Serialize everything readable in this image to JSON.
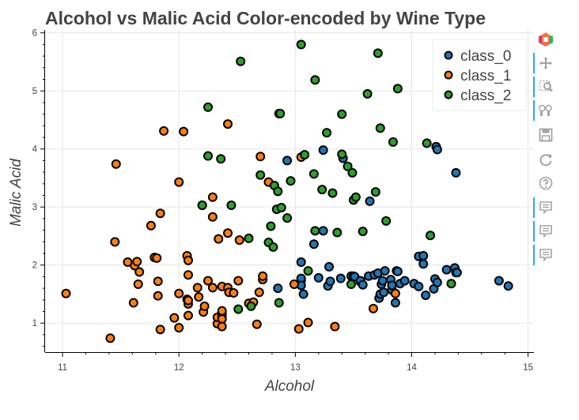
{
  "chart_data": {
    "type": "scatter",
    "title": "Alcohol vs Malic Acid Color-encoded by Wine Type",
    "xlabel": "Alcohol",
    "ylabel": "Malic Acid",
    "xlim": [
      10.85,
      15.05
    ],
    "ylim": [
      0.5,
      6.05
    ],
    "xticks": [
      11,
      12,
      13,
      14,
      15
    ],
    "yticks": [
      1,
      2,
      3,
      4,
      5,
      6
    ],
    "grid": true,
    "legend_position": "top-right",
    "series": [
      {
        "name": "class_0",
        "color": "#1f77b4",
        "points": [
          [
            12.85,
            1.6
          ],
          [
            12.93,
            3.8
          ],
          [
            13.05,
            1.73
          ],
          [
            13.05,
            1.77
          ],
          [
            13.05,
            1.65
          ],
          [
            13.05,
            2.05
          ],
          [
            13.07,
            1.5
          ],
          [
            13.16,
            2.36
          ],
          [
            13.2,
            1.78
          ],
          [
            13.24,
            2.59
          ],
          [
            13.24,
            3.98
          ],
          [
            13.28,
            1.64
          ],
          [
            13.29,
            1.97
          ],
          [
            13.3,
            1.72
          ],
          [
            13.39,
            1.77
          ],
          [
            13.41,
            3.84
          ],
          [
            13.48,
            1.81
          ],
          [
            13.5,
            1.81
          ],
          [
            13.51,
            1.8
          ],
          [
            13.56,
            1.71
          ],
          [
            13.56,
            1.73
          ],
          [
            13.58,
            1.66
          ],
          [
            13.63,
            1.81
          ],
          [
            13.64,
            3.1
          ],
          [
            13.68,
            1.83
          ],
          [
            13.71,
            1.86
          ],
          [
            13.72,
            1.43
          ],
          [
            13.73,
            1.5
          ],
          [
            13.74,
            1.67
          ],
          [
            13.75,
            1.73
          ],
          [
            13.76,
            1.53
          ],
          [
            13.77,
            1.9
          ],
          [
            13.82,
            1.75
          ],
          [
            13.83,
            1.57
          ],
          [
            13.83,
            1.65
          ],
          [
            13.86,
            1.35
          ],
          [
            13.87,
            1.9
          ],
          [
            13.88,
            1.89
          ],
          [
            13.9,
            1.68
          ],
          [
            13.94,
            1.73
          ],
          [
            14.02,
            1.68
          ],
          [
            14.06,
            1.63
          ],
          [
            14.06,
            2.15
          ],
          [
            14.1,
            2.02
          ],
          [
            14.1,
            2.16
          ],
          [
            14.12,
            1.48
          ],
          [
            14.19,
            1.59
          ],
          [
            14.2,
            1.76
          ],
          [
            14.21,
            4.04
          ],
          [
            14.22,
            1.7
          ],
          [
            14.22,
            3.99
          ],
          [
            14.3,
            1.92
          ],
          [
            14.37,
            1.95
          ],
          [
            14.38,
            1.87
          ],
          [
            14.38,
            3.59
          ],
          [
            14.39,
            1.87
          ],
          [
            14.75,
            1.73
          ],
          [
            14.83,
            1.64
          ]
        ]
      },
      {
        "name": "class_1",
        "color": "#ff7f0e",
        "points": [
          [
            11.03,
            1.51
          ],
          [
            11.41,
            0.74
          ],
          [
            11.45,
            2.4
          ],
          [
            11.46,
            3.74
          ],
          [
            11.56,
            2.05
          ],
          [
            11.61,
            1.35
          ],
          [
            11.62,
            1.99
          ],
          [
            11.64,
            2.06
          ],
          [
            11.65,
            1.67
          ],
          [
            11.66,
            1.88
          ],
          [
            11.76,
            2.68
          ],
          [
            11.79,
            2.13
          ],
          [
            11.81,
            2.12
          ],
          [
            11.82,
            1.72
          ],
          [
            11.82,
            1.47
          ],
          [
            11.84,
            2.89
          ],
          [
            11.84,
            0.89
          ],
          [
            11.87,
            4.31
          ],
          [
            11.96,
            1.09
          ],
          [
            12.0,
            0.92
          ],
          [
            12.0,
            3.43
          ],
          [
            12.0,
            1.51
          ],
          [
            12.04,
            4.3
          ],
          [
            12.07,
            2.16
          ],
          [
            12.07,
            1.41
          ],
          [
            12.08,
            1.33
          ],
          [
            12.08,
            1.13
          ],
          [
            12.08,
            1.39
          ],
          [
            12.08,
            2.08
          ],
          [
            12.08,
            1.83
          ],
          [
            12.16,
            1.61
          ],
          [
            12.17,
            1.45
          ],
          [
            12.2,
            3.03
          ],
          [
            12.21,
            1.19
          ],
          [
            12.22,
            1.29
          ],
          [
            12.25,
            1.73
          ],
          [
            12.29,
            1.61
          ],
          [
            12.29,
            2.83
          ],
          [
            12.29,
            3.17
          ],
          [
            12.33,
            0.99
          ],
          [
            12.33,
            1.1
          ],
          [
            12.34,
            2.45
          ],
          [
            12.37,
            1.63
          ],
          [
            12.37,
            1.13
          ],
          [
            12.37,
            1.17
          ],
          [
            12.37,
            1.07
          ],
          [
            12.37,
            0.94
          ],
          [
            12.37,
            1.21
          ],
          [
            12.42,
            4.43
          ],
          [
            12.42,
            2.55
          ],
          [
            12.42,
            1.61
          ],
          [
            12.43,
            1.53
          ],
          [
            12.47,
            1.52
          ],
          [
            12.51,
            1.73
          ],
          [
            12.52,
            2.43
          ],
          [
            12.6,
            1.34
          ],
          [
            12.64,
            1.36
          ],
          [
            12.67,
            0.98
          ],
          [
            12.69,
            1.53
          ],
          [
            12.7,
            3.87
          ],
          [
            12.72,
            1.75
          ],
          [
            12.72,
            1.81
          ],
          [
            12.77,
            3.43
          ],
          [
            12.99,
            1.67
          ],
          [
            13.03,
            0.9
          ],
          [
            13.05,
            3.86
          ],
          [
            13.11,
            1.01
          ],
          [
            13.34,
            0.94
          ],
          [
            13.67,
            1.25
          ],
          [
            13.86,
            1.51
          ]
        ]
      },
      {
        "name": "class_2",
        "color": "#2ca02c",
        "points": [
          [
            12.2,
            3.03
          ],
          [
            12.25,
            4.72
          ],
          [
            12.25,
            3.88
          ],
          [
            12.36,
            3.83
          ],
          [
            12.45,
            3.03
          ],
          [
            12.51,
            1.24
          ],
          [
            12.53,
            5.51
          ],
          [
            12.6,
            2.46
          ],
          [
            12.62,
            1.29
          ],
          [
            12.7,
            3.55
          ],
          [
            12.77,
            2.39
          ],
          [
            12.79,
            2.67
          ],
          [
            12.81,
            2.31
          ],
          [
            12.82,
            3.37
          ],
          [
            12.84,
            2.96
          ],
          [
            12.85,
            3.27
          ],
          [
            12.86,
            1.35
          ],
          [
            12.86,
            4.61
          ],
          [
            12.87,
            4.61
          ],
          [
            12.88,
            2.99
          ],
          [
            12.93,
            2.81
          ],
          [
            12.96,
            3.45
          ],
          [
            13.05,
            5.8
          ],
          [
            13.08,
            3.9
          ],
          [
            13.11,
            1.9
          ],
          [
            13.16,
            3.57
          ],
          [
            13.17,
            2.59
          ],
          [
            13.17,
            5.19
          ],
          [
            13.23,
            3.3
          ],
          [
            13.27,
            4.28
          ],
          [
            13.32,
            3.24
          ],
          [
            13.36,
            2.56
          ],
          [
            13.4,
            3.91
          ],
          [
            13.4,
            4.6
          ],
          [
            13.45,
            3.7
          ],
          [
            13.48,
            1.67
          ],
          [
            13.49,
            3.59
          ],
          [
            13.5,
            3.12
          ],
          [
            13.52,
            3.17
          ],
          [
            13.58,
            2.58
          ],
          [
            13.62,
            4.95
          ],
          [
            13.69,
            3.26
          ],
          [
            13.71,
            5.65
          ],
          [
            13.73,
            4.36
          ],
          [
            13.78,
            2.76
          ],
          [
            13.84,
            4.12
          ],
          [
            13.88,
            5.04
          ],
          [
            14.13,
            4.1
          ],
          [
            14.16,
            2.51
          ],
          [
            14.34,
            1.68
          ]
        ]
      }
    ]
  },
  "toolbar": {
    "tools": [
      {
        "icon": "bokeh-logo-icon"
      },
      {
        "icon": "pan-icon",
        "active": true
      },
      {
        "icon": "box-zoom-icon",
        "active": true
      },
      {
        "icon": "wheel-zoom-icon",
        "active": true
      },
      {
        "icon": "save-icon"
      },
      {
        "icon": "reset-icon"
      },
      {
        "icon": "help-icon"
      },
      {
        "icon": "hover-icon",
        "active": true
      },
      {
        "icon": "hover-icon",
        "active": true
      },
      {
        "icon": "hover-icon",
        "active": true
      }
    ]
  }
}
